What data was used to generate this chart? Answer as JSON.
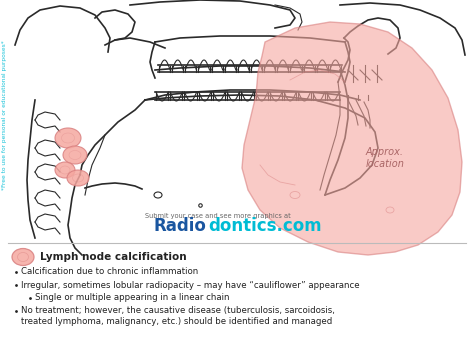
{
  "background_color": "#ffffff",
  "watermark_left": "*Free to use for personal or educational purposes*",
  "submit_text": "Submit your case and see more graphics at",
  "brand_radio": "Radio",
  "brand_dontics": "dontics.com",
  "approx_text": "Approx.\nlocation",
  "legend_title": "Lymph node calcification",
  "bullets": [
    "Calcification due to chronic inflammation",
    "Irregular, sometimes lobular radiopacity – may have “cauliflower” appearance",
    "Single or multiple appearing in a linear chain",
    "No treatment; however, the causative disease (tuberculosis, sarcoidosis,\n    treated lymphoma, malignancy, etc.) should be identified and managed"
  ],
  "sub_bullet_index": 2,
  "pink_face": "#f5a8a0",
  "pink_edge": "#d98080",
  "pink_alpha": 0.6,
  "line_color": "#2a2a2a",
  "cyan_color": "#00bcd4",
  "text_color": "#222222",
  "brand_blue": "#1a56a0",
  "brand_cyan": "#00bcd4",
  "panel_line_color": "#bbbbbb",
  "gray_text": "#666666"
}
